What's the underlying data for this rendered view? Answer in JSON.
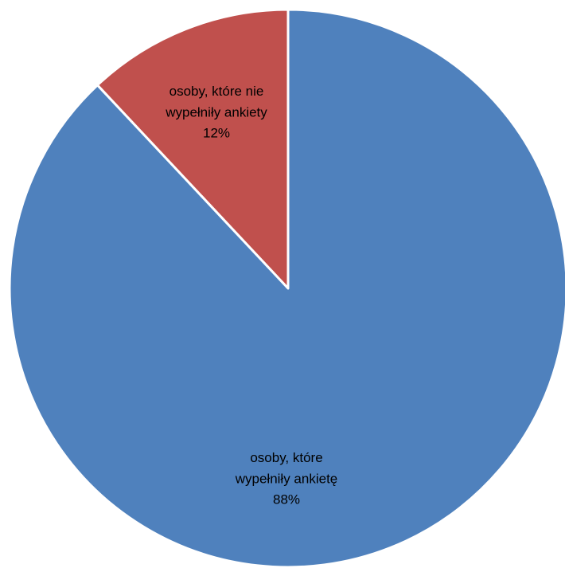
{
  "chart_data": {
    "type": "pie",
    "title": "",
    "legend": "none",
    "slices": [
      {
        "label_lines": [
          "osoby, które nie",
          "wypełniły ankiety",
          "12%"
        ],
        "category": "osoby, które nie wypełniły ankiety",
        "value": 12,
        "color": "#C0504D"
      },
      {
        "label_lines": [
          "osoby, które",
          "wypełniły ankietę",
          "88%"
        ],
        "category": "osoby, które wypełniły ankietę",
        "value": 88,
        "color": "#4F81BD"
      }
    ],
    "border_color": "#FFFFFF"
  }
}
